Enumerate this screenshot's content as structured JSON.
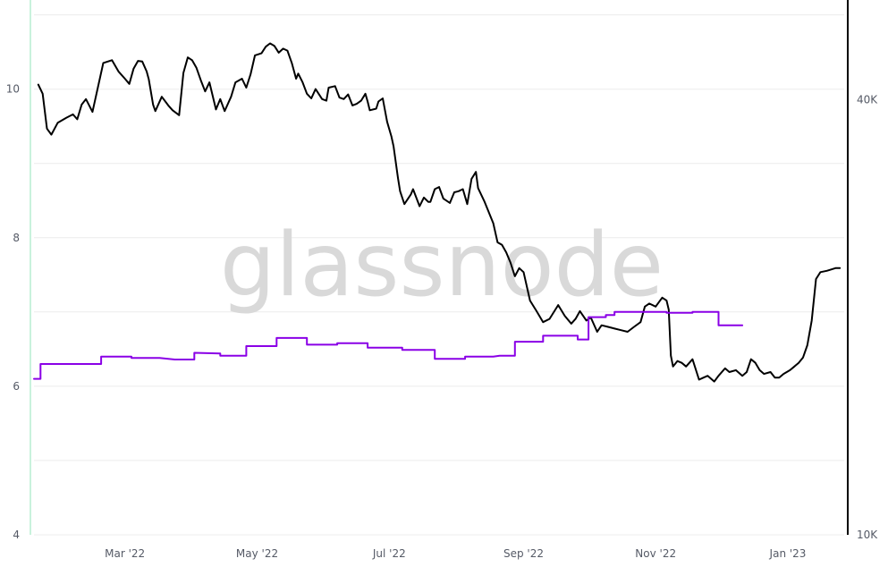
{
  "watermark": "glassnode",
  "colors": {
    "price": "#000000",
    "metric": "#8a00e6",
    "grid": "#ececec",
    "left_axis": "#c9f2dc",
    "right_axis": "#000000",
    "text": "#555a66"
  },
  "chart_data": {
    "type": "line",
    "x_range": [
      "2022-01-18",
      "2023-01-27"
    ],
    "x_ticks": [
      {
        "date": "2022-03-01",
        "label": "Mar '22"
      },
      {
        "date": "2022-05-01",
        "label": "May '22"
      },
      {
        "date": "2022-07-01",
        "label": "Jul '22"
      },
      {
        "date": "2022-09-01",
        "label": "Sep '22"
      },
      {
        "date": "2022-11-01",
        "label": "Nov '22"
      },
      {
        "date": "2023-01-01",
        "label": "Jan '23"
      }
    ],
    "y_left": {
      "ylim": [
        4,
        11.2
      ],
      "ticks": [
        "4",
        "6",
        "8",
        "10"
      ]
    },
    "y_right": {
      "scale": "log",
      "ylim": [
        10000,
        55000
      ],
      "ticks": [
        {
          "value": 10000,
          "label": "10K"
        },
        {
          "value": 40000,
          "label": "40K"
        }
      ]
    },
    "series": [
      {
        "axis": "right",
        "color": "#000000",
        "points": [
          [
            "2022-01-20",
            42000
          ],
          [
            "2022-01-22",
            40800
          ],
          [
            "2022-01-24",
            36500
          ],
          [
            "2022-01-26",
            35800
          ],
          [
            "2022-01-29",
            37200
          ],
          [
            "2022-02-02",
            37800
          ],
          [
            "2022-02-05",
            38200
          ],
          [
            "2022-02-07",
            37600
          ],
          [
            "2022-02-09",
            39400
          ],
          [
            "2022-02-11",
            40100
          ],
          [
            "2022-02-14",
            38500
          ],
          [
            "2022-02-15",
            39700
          ],
          [
            "2022-02-19",
            45000
          ],
          [
            "2022-02-23",
            45400
          ],
          [
            "2022-02-26",
            43800
          ],
          [
            "2022-03-01",
            42800
          ],
          [
            "2022-03-03",
            42100
          ],
          [
            "2022-03-05",
            44200
          ],
          [
            "2022-03-07",
            45300
          ],
          [
            "2022-03-09",
            45200
          ],
          [
            "2022-03-11",
            43800
          ],
          [
            "2022-03-12",
            42700
          ],
          [
            "2022-03-14",
            39400
          ],
          [
            "2022-03-15",
            38600
          ],
          [
            "2022-03-18",
            40400
          ],
          [
            "2022-03-21",
            39300
          ],
          [
            "2022-03-23",
            38700
          ],
          [
            "2022-03-26",
            38100
          ],
          [
            "2022-03-28",
            43600
          ],
          [
            "2022-03-30",
            45800
          ],
          [
            "2022-04-01",
            45400
          ],
          [
            "2022-04-03",
            44300
          ],
          [
            "2022-04-05",
            42600
          ],
          [
            "2022-04-07",
            41100
          ],
          [
            "2022-04-09",
            42300
          ],
          [
            "2022-04-12",
            38800
          ],
          [
            "2022-04-14",
            40100
          ],
          [
            "2022-04-16",
            38600
          ],
          [
            "2022-04-19",
            40400
          ],
          [
            "2022-04-21",
            42300
          ],
          [
            "2022-04-24",
            42800
          ],
          [
            "2022-04-26",
            41600
          ],
          [
            "2022-04-28",
            43400
          ],
          [
            "2022-04-30",
            46100
          ],
          [
            "2022-05-03",
            46400
          ],
          [
            "2022-05-05",
            47400
          ],
          [
            "2022-05-07",
            47900
          ],
          [
            "2022-05-09",
            47500
          ],
          [
            "2022-05-11",
            46500
          ],
          [
            "2022-05-13",
            47100
          ],
          [
            "2022-05-15",
            46800
          ],
          [
            "2022-05-17",
            45000
          ],
          [
            "2022-05-19",
            42800
          ],
          [
            "2022-05-20",
            43500
          ],
          [
            "2022-05-22",
            42300
          ],
          [
            "2022-05-24",
            40800
          ],
          [
            "2022-05-26",
            40200
          ],
          [
            "2022-05-28",
            41400
          ],
          [
            "2022-05-31",
            40100
          ],
          [
            "2022-06-02",
            39900
          ],
          [
            "2022-06-03",
            41600
          ],
          [
            "2022-06-06",
            41800
          ],
          [
            "2022-06-08",
            40300
          ],
          [
            "2022-06-10",
            40100
          ],
          [
            "2022-06-12",
            40700
          ],
          [
            "2022-06-14",
            39300
          ],
          [
            "2022-06-16",
            39500
          ],
          [
            "2022-06-18",
            39900
          ],
          [
            "2022-06-20",
            40800
          ],
          [
            "2022-06-21",
            39800
          ],
          [
            "2022-06-22",
            38700
          ],
          [
            "2022-06-25",
            38900
          ],
          [
            "2022-06-26",
            39800
          ],
          [
            "2022-06-28",
            40200
          ],
          [
            "2022-06-30",
            37300
          ],
          [
            "2022-07-02",
            35600
          ],
          [
            "2022-07-03",
            34500
          ],
          [
            "2022-07-05",
            31200
          ],
          [
            "2022-07-06",
            29900
          ],
          [
            "2022-07-08",
            28700
          ],
          [
            "2022-07-11",
            29600
          ],
          [
            "2022-07-12",
            30100
          ],
          [
            "2022-07-15",
            28500
          ],
          [
            "2022-07-17",
            29300
          ],
          [
            "2022-07-19",
            28900
          ],
          [
            "2022-07-20",
            28900
          ],
          [
            "2022-07-22",
            30100
          ],
          [
            "2022-07-24",
            30300
          ],
          [
            "2022-07-26",
            29200
          ],
          [
            "2022-07-29",
            28800
          ],
          [
            "2022-07-31",
            29800
          ],
          [
            "2022-08-02",
            29900
          ],
          [
            "2022-08-04",
            30100
          ],
          [
            "2022-08-06",
            28700
          ],
          [
            "2022-08-08",
            31100
          ],
          [
            "2022-08-10",
            31800
          ],
          [
            "2022-08-11",
            30200
          ],
          [
            "2022-08-14",
            28900
          ],
          [
            "2022-08-18",
            27000
          ],
          [
            "2022-08-20",
            25400
          ],
          [
            "2022-08-22",
            25200
          ],
          [
            "2022-08-24",
            24600
          ],
          [
            "2022-08-26",
            23800
          ],
          [
            "2022-08-28",
            22800
          ],
          [
            "2022-08-30",
            23400
          ],
          [
            "2022-09-01",
            23100
          ],
          [
            "2022-09-04",
            21100
          ],
          [
            "2022-09-07",
            20400
          ],
          [
            "2022-09-10",
            19700
          ],
          [
            "2022-09-13",
            19900
          ],
          [
            "2022-09-17",
            20800
          ],
          [
            "2022-09-20",
            20100
          ],
          [
            "2022-09-23",
            19600
          ],
          [
            "2022-09-25",
            19900
          ],
          [
            "2022-09-27",
            20400
          ],
          [
            "2022-09-30",
            19800
          ],
          [
            "2022-10-02",
            20000
          ],
          [
            "2022-10-05",
            19100
          ],
          [
            "2022-10-07",
            19500
          ],
          [
            "2022-10-10",
            19400
          ],
          [
            "2022-10-13",
            19300
          ],
          [
            "2022-10-16",
            19200
          ],
          [
            "2022-10-19",
            19100
          ],
          [
            "2022-10-22",
            19400
          ],
          [
            "2022-10-25",
            19700
          ],
          [
            "2022-10-27",
            20700
          ],
          [
            "2022-10-29",
            20900
          ],
          [
            "2022-11-01",
            20700
          ],
          [
            "2022-11-04",
            21300
          ],
          [
            "2022-11-06",
            21100
          ],
          [
            "2022-11-07",
            20500
          ],
          [
            "2022-11-08",
            17700
          ],
          [
            "2022-11-09",
            17100
          ],
          [
            "2022-11-11",
            17400
          ],
          [
            "2022-11-13",
            17300
          ],
          [
            "2022-11-15",
            17100
          ],
          [
            "2022-11-18",
            17500
          ],
          [
            "2022-11-21",
            16400
          ],
          [
            "2022-11-23",
            16500
          ],
          [
            "2022-11-25",
            16600
          ],
          [
            "2022-11-28",
            16300
          ],
          [
            "2022-11-30",
            16600
          ],
          [
            "2022-12-03",
            17000
          ],
          [
            "2022-12-05",
            16800
          ],
          [
            "2022-12-08",
            16900
          ],
          [
            "2022-12-11",
            16600
          ],
          [
            "2022-12-13",
            16800
          ],
          [
            "2022-12-15",
            17500
          ],
          [
            "2022-12-17",
            17300
          ],
          [
            "2022-12-19",
            16900
          ],
          [
            "2022-12-21",
            16700
          ],
          [
            "2022-12-24",
            16800
          ],
          [
            "2022-12-26",
            16500
          ],
          [
            "2022-12-28",
            16500
          ],
          [
            "2022-12-30",
            16700
          ],
          [
            "2023-01-02",
            16900
          ],
          [
            "2023-01-04",
            17100
          ],
          [
            "2023-01-06",
            17300
          ],
          [
            "2023-01-08",
            17600
          ],
          [
            "2023-01-10",
            18300
          ],
          [
            "2023-01-12",
            19800
          ],
          [
            "2023-01-14",
            22600
          ],
          [
            "2023-01-16",
            23100
          ],
          [
            "2023-01-19",
            23200
          ],
          [
            "2023-01-21",
            23300
          ],
          [
            "2023-01-23",
            23400
          ],
          [
            "2023-01-25",
            23400
          ]
        ]
      },
      {
        "axis": "left",
        "color": "#8a00e6",
        "points": [
          [
            "2022-01-18",
            6.1
          ],
          [
            "2022-01-21",
            6.1
          ],
          [
            "2022-01-21",
            6.3
          ],
          [
            "2022-02-08",
            6.3
          ],
          [
            "2022-02-18",
            6.3
          ],
          [
            "2022-02-18",
            6.4
          ],
          [
            "2022-03-04",
            6.4
          ],
          [
            "2022-03-04",
            6.38
          ],
          [
            "2022-03-17",
            6.38
          ],
          [
            "2022-03-24",
            6.36
          ],
          [
            "2022-04-02",
            6.36
          ],
          [
            "2022-04-02",
            6.45
          ],
          [
            "2022-04-14",
            6.44
          ],
          [
            "2022-04-14",
            6.41
          ],
          [
            "2022-04-26",
            6.41
          ],
          [
            "2022-04-26",
            6.54
          ],
          [
            "2022-05-10",
            6.54
          ],
          [
            "2022-05-10",
            6.65
          ],
          [
            "2022-05-24",
            6.65
          ],
          [
            "2022-05-24",
            6.56
          ],
          [
            "2022-06-07",
            6.56
          ],
          [
            "2022-06-07",
            6.58
          ],
          [
            "2022-06-21",
            6.58
          ],
          [
            "2022-06-21",
            6.52
          ],
          [
            "2022-07-07",
            6.52
          ],
          [
            "2022-07-07",
            6.49
          ],
          [
            "2022-07-22",
            6.49
          ],
          [
            "2022-07-22",
            6.37
          ],
          [
            "2022-08-05",
            6.37
          ],
          [
            "2022-08-05",
            6.4
          ],
          [
            "2022-08-18",
            6.4
          ],
          [
            "2022-08-21",
            6.41
          ],
          [
            "2022-08-28",
            6.41
          ],
          [
            "2022-08-28",
            6.6
          ],
          [
            "2022-09-10",
            6.6
          ],
          [
            "2022-09-10",
            6.68
          ],
          [
            "2022-09-26",
            6.68
          ],
          [
            "2022-09-26",
            6.63
          ],
          [
            "2022-10-01",
            6.63
          ],
          [
            "2022-10-01",
            6.93
          ],
          [
            "2022-10-09",
            6.93
          ],
          [
            "2022-10-09",
            6.96
          ],
          [
            "2022-10-13",
            6.96
          ],
          [
            "2022-10-13",
            7.0
          ],
          [
            "2022-11-06",
            7.0
          ],
          [
            "2022-11-06",
            6.99
          ],
          [
            "2022-11-18",
            6.99
          ],
          [
            "2022-11-18",
            7.0
          ],
          [
            "2022-11-30",
            7.0
          ],
          [
            "2022-11-30",
            6.82
          ],
          [
            "2022-12-11",
            6.82
          ]
        ]
      }
    ]
  }
}
